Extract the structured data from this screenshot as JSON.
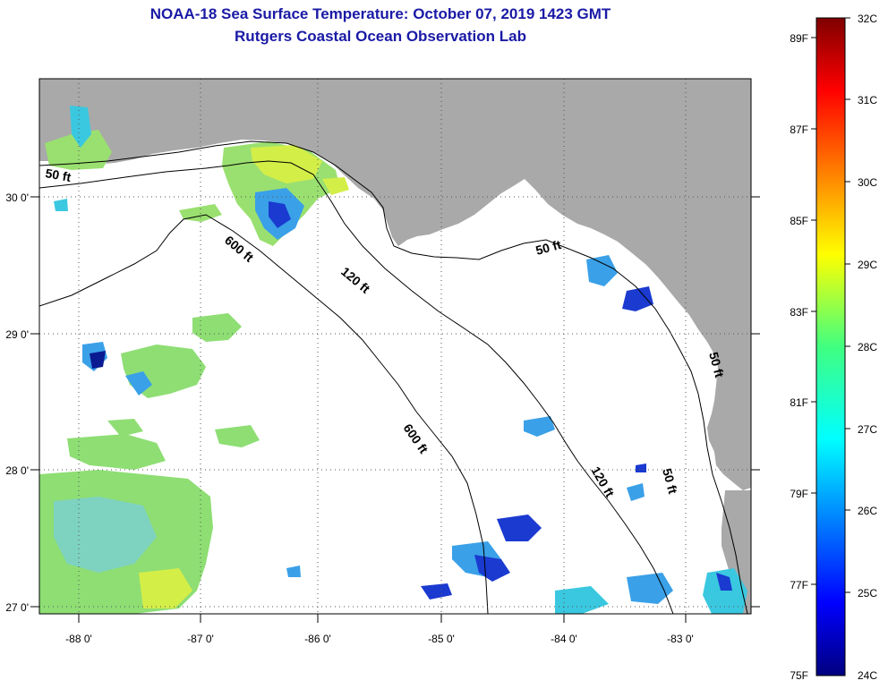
{
  "title_line1": "NOAA-18 Sea Surface Temperature:  October 07, 2019 1423 GMT",
  "title_line2": "Rutgers Coastal Ocean Observation Lab",
  "lon_ticks": [
    {
      "value": -88,
      "label": "-88 0'"
    },
    {
      "value": -87,
      "label": "-87 0'"
    },
    {
      "value": -86,
      "label": "-86 0'"
    },
    {
      "value": -85,
      "label": "-85 0'"
    },
    {
      "value": -84,
      "label": "-84 0'"
    },
    {
      "value": -83,
      "label": "-83 0'"
    }
  ],
  "lat_ticks": [
    {
      "value": 30,
      "label": "30 0'"
    },
    {
      "value": 29,
      "label": "29 0'"
    },
    {
      "value": 28,
      "label": "28 0'"
    },
    {
      "value": 27,
      "label": "27 0'"
    }
  ],
  "contour_labels": [
    "50 ft",
    "600 ft",
    "120 ft",
    "50 ft",
    "600 ft",
    "120 ft",
    "50 ft",
    "50 ft"
  ],
  "colorbar": {
    "fahrenheit": [
      "89F",
      "87F",
      "85F",
      "83F",
      "81F",
      "79F",
      "77F",
      "75F"
    ],
    "celsius": [
      "32C",
      "31C",
      "30C",
      "29C",
      "28C",
      "27C",
      "26C",
      "25C",
      "24C"
    ]
  },
  "colors": {
    "title": "#1a1aa6",
    "land": "#a9a9a9",
    "ocean_nodata": "#ffffff",
    "sst_green": "#7ee07a",
    "sst_yellow": "#d8f040",
    "sst_cyan": "#38d0e8",
    "sst_blue": "#1a4ad8",
    "sst_darkblue": "#0a1a90"
  }
}
